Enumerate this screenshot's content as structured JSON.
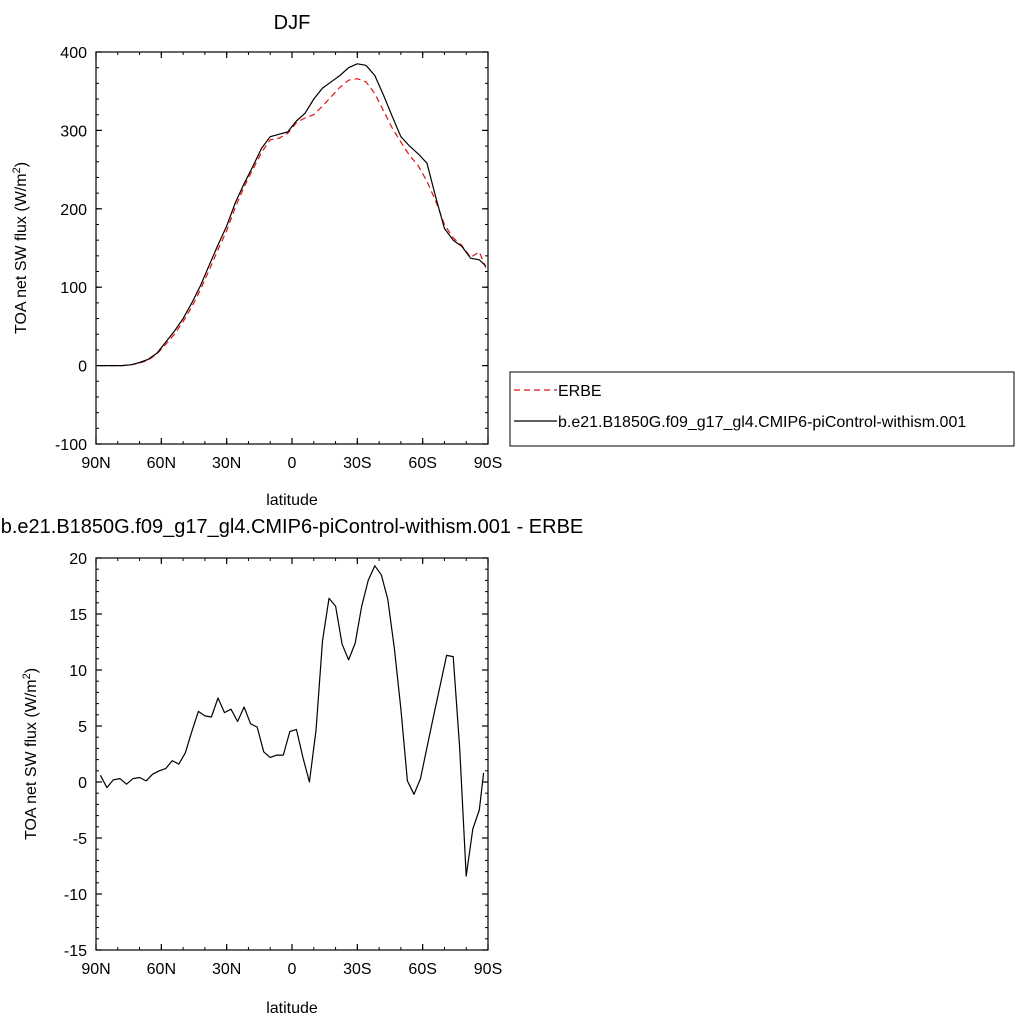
{
  "colors": {
    "model": "#000000",
    "obs": "#e01010"
  },
  "chart_data": [
    {
      "type": "line",
      "title": "DJF",
      "xlabel": "latitude",
      "ylabel_main": "TOA net SW flux (W/m",
      "ylabel_sup": "2",
      "ylabel_tail": ")",
      "xlim": [
        90,
        -90
      ],
      "ylim": [
        -100,
        400
      ],
      "xticks": [
        {
          "v": 90,
          "label": "90N"
        },
        {
          "v": 60,
          "label": "60N"
        },
        {
          "v": 30,
          "label": "30N"
        },
        {
          "v": 0,
          "label": "0"
        },
        {
          "v": -30,
          "label": "30S"
        },
        {
          "v": -60,
          "label": "60S"
        },
        {
          "v": -90,
          "label": "90S"
        }
      ],
      "yticks": [
        {
          "v": 400,
          "label": "400"
        },
        {
          "v": 300,
          "label": "300"
        },
        {
          "v": 200,
          "label": "200"
        },
        {
          "v": 100,
          "label": "100"
        },
        {
          "v": 0,
          "label": "0"
        },
        {
          "v": -100,
          "label": "-100"
        }
      ],
      "legend": {
        "placement": "right"
      },
      "series": [
        {
          "name": "ERBE",
          "style": "dashed",
          "x": [
            88,
            82,
            78,
            74,
            70,
            66,
            62,
            58,
            54,
            50,
            46,
            42,
            38,
            34,
            30,
            26,
            22,
            18,
            14,
            10,
            6,
            2,
            -2,
            -6,
            -10,
            -14,
            -18,
            -22,
            -26,
            -30,
            -34,
            -38,
            -42,
            -46,
            -50,
            -54,
            -58,
            -62,
            -66,
            -70,
            -74,
            -78,
            -82,
            -86,
            -89
          ],
          "y": [
            0,
            0,
            0,
            1,
            3,
            7,
            15,
            27,
            40,
            56,
            75,
            97,
            122,
            148,
            172,
            202,
            228,
            250,
            272,
            288,
            290,
            296,
            310,
            316,
            320,
            331,
            343,
            355,
            364,
            366,
            362,
            347,
            325,
            303,
            285,
            268,
            255,
            235,
            210,
            180,
            163,
            153,
            138,
            145,
            125
          ]
        },
        {
          "name": "b.e21.B1850G.f09_g17_gl4.CMIP6-piControl-withism.001",
          "style": "solid",
          "x": [
            88,
            82,
            78,
            74,
            70,
            66,
            62,
            58,
            54,
            50,
            46,
            42,
            38,
            34,
            30,
            26,
            22,
            18,
            14,
            10,
            6,
            2,
            -2,
            -6,
            -10,
            -14,
            -18,
            -22,
            -26,
            -30,
            -34,
            -38,
            -42,
            -46,
            -50,
            -54,
            -58,
            -62,
            -66,
            -70,
            -74,
            -78,
            -82,
            -86,
            -89
          ],
          "y": [
            0,
            0,
            0,
            1,
            4,
            8,
            16,
            30,
            44,
            60,
            80,
            102,
            128,
            154,
            178,
            208,
            232,
            254,
            277,
            292,
            295,
            298,
            312,
            322,
            340,
            354,
            362,
            370,
            380,
            385,
            383,
            370,
            345,
            318,
            292,
            280,
            270,
            258,
            215,
            175,
            160,
            152,
            137,
            135,
            127
          ]
        }
      ]
    },
    {
      "type": "line",
      "title": "b.e21.B1850G.f09_g17_gl4.CMIP6-piControl-withism.001 - ERBE",
      "xlabel": "latitude",
      "ylabel_main": "TOA net SW flux (W/m",
      "ylabel_sup": "2",
      "ylabel_tail": ")",
      "xlim": [
        90,
        -90
      ],
      "ylim": [
        -15,
        20
      ],
      "xticks": [
        {
          "v": 90,
          "label": "90N"
        },
        {
          "v": 60,
          "label": "60N"
        },
        {
          "v": 30,
          "label": "30N"
        },
        {
          "v": 0,
          "label": "0"
        },
        {
          "v": -30,
          "label": "30S"
        },
        {
          "v": -60,
          "label": "60S"
        },
        {
          "v": -90,
          "label": "90S"
        }
      ],
      "yticks": [
        {
          "v": 20,
          "label": "20"
        },
        {
          "v": 15,
          "label": "15"
        },
        {
          "v": 10,
          "label": "10"
        },
        {
          "v": 5,
          "label": "5"
        },
        {
          "v": 0,
          "label": "0"
        },
        {
          "v": -5,
          "label": "-5"
        },
        {
          "v": -10,
          "label": "-10"
        },
        {
          "v": -15,
          "label": "-15"
        }
      ],
      "series": [
        {
          "style": "solid",
          "x": [
            88,
            85,
            82,
            79,
            76,
            73,
            70,
            67,
            64,
            61,
            58,
            55,
            52,
            49,
            46,
            43,
            40,
            37,
            34,
            31,
            28,
            25,
            22,
            19,
            16,
            13,
            10,
            7,
            4,
            1,
            -2,
            -5,
            -8,
            -11,
            -14,
            -17,
            -20,
            -23,
            -26,
            -29,
            -32,
            -35,
            -38,
            -41,
            -44,
            -47,
            -50,
            -53,
            -56,
            -59,
            -62,
            -65,
            -68,
            -71,
            -74,
            -77,
            -80,
            -83,
            -86,
            -88
          ],
          "y": [
            0.6,
            -0.5,
            0.2,
            0.3,
            -0.2,
            0.3,
            0.4,
            0.1,
            0.7,
            1.0,
            1.2,
            1.9,
            1.6,
            2.6,
            4.5,
            6.3,
            5.9,
            5.8,
            7.5,
            6.2,
            6.5,
            5.4,
            6.7,
            5.2,
            4.9,
            2.7,
            2.2,
            2.4,
            2.4,
            4.5,
            4.7,
            2.2,
            0.0,
            4.6,
            12.6,
            16.4,
            15.7,
            12.3,
            10.9,
            12.4,
            15.7,
            18.0,
            19.3,
            18.5,
            16.3,
            11.9,
            6.5,
            0.1,
            -1.1,
            0.3,
            3.1,
            5.9,
            8.6,
            11.3,
            11.2,
            3.0,
            -8.4,
            -4.2,
            -2.5,
            0.8
          ]
        }
      ]
    }
  ]
}
